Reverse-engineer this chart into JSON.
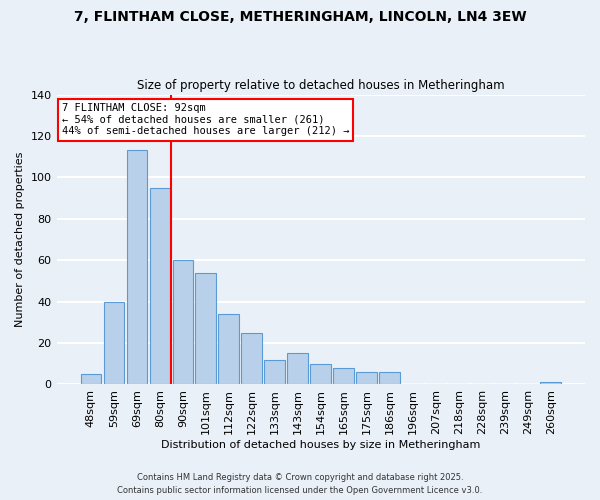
{
  "title": "7, FLINTHAM CLOSE, METHERINGHAM, LINCOLN, LN4 3EW",
  "subtitle": "Size of property relative to detached houses in Metheringham",
  "xlabel": "Distribution of detached houses by size in Metheringham",
  "ylabel": "Number of detached properties",
  "categories": [
    "48sqm",
    "59sqm",
    "69sqm",
    "80sqm",
    "90sqm",
    "101sqm",
    "112sqm",
    "122sqm",
    "133sqm",
    "143sqm",
    "154sqm",
    "165sqm",
    "175sqm",
    "186sqm",
    "196sqm",
    "207sqm",
    "218sqm",
    "228sqm",
    "239sqm",
    "249sqm",
    "260sqm"
  ],
  "values": [
    5,
    40,
    113,
    95,
    60,
    54,
    34,
    25,
    12,
    15,
    10,
    8,
    6,
    6,
    0,
    0,
    0,
    0,
    0,
    0,
    1
  ],
  "bar_color": "#b8d0ea",
  "bar_edge_color": "#5b9bd5",
  "vline_x": 3.5,
  "vline_color": "red",
  "annotation_title": "7 FLINTHAM CLOSE: 92sqm",
  "annotation_line1": "← 54% of detached houses are smaller (261)",
  "annotation_line2": "44% of semi-detached houses are larger (212) →",
  "annotation_box_color": "white",
  "annotation_box_edge": "red",
  "ylim": [
    0,
    140
  ],
  "yticks": [
    0,
    20,
    40,
    60,
    80,
    100,
    120,
    140
  ],
  "footer1": "Contains HM Land Registry data © Crown copyright and database right 2025.",
  "footer2": "Contains public sector information licensed under the Open Government Licence v3.0.",
  "background_color": "#eaf0f8",
  "grid_color": "white"
}
